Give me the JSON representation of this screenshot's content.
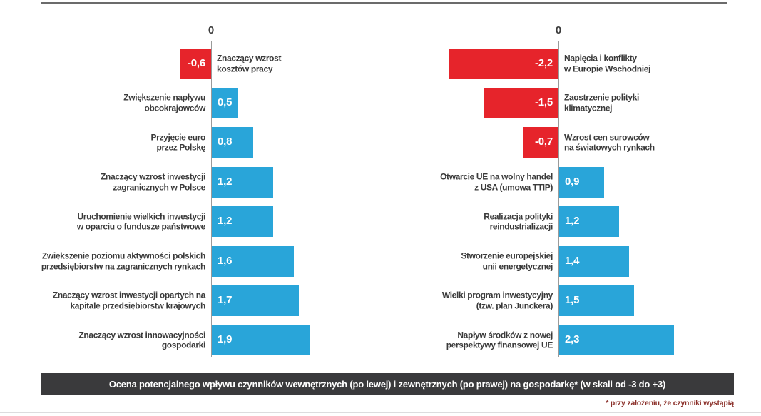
{
  "caption": "Ocena potencjalnego wpływu czynników wewnętrznych (po lewej) i zewnętrznych (po prawej) na gospodarkę* (w skali od -3 do +3)",
  "footnote": "* przy założeniu, że czynniki wystąpią",
  "colors": {
    "positive_bar": "#29a5d9",
    "negative_bar": "#e6242b",
    "axis": "#9a9a9a",
    "label_text": "#3a3a3a",
    "value_text": "#ffffff",
    "caption_bg": "#3a3a3c",
    "caption_text": "#ffffff",
    "footnote_text": "#8b302a",
    "top_rule": "#6b6b6b",
    "bottom_rule": "#dcdcde"
  },
  "chart_data": [
    {
      "type": "bar",
      "orientation": "horizontal",
      "side": "left",
      "subject": "czynniki wewnętrzne",
      "zero_label": "0",
      "xlim": [
        -3,
        3
      ],
      "grid": false,
      "legend": false,
      "categories": [
        "Znaczący wzrost\nkosztów pracy",
        "Zwiększenie napływu\nobcokrajowców",
        "Przyjęcie euro\nprzez Polskę",
        "Znaczący wzrost inwestycji\nzagranicznych w Polsce",
        "Uruchomienie wielkich inwestycji\nw oparciu o fundusze państwowe",
        "Zwiększenie poziomu aktywności polskich\nprzedsiębiorstw na zagranicznych rynkach",
        "Znaczący wzrost inwestycji opartych na\nkapitale przedsiębiorstw krajowych",
        "Znaczący wzrost innowacyjności\ngospodarki"
      ],
      "values": [
        -0.6,
        0.5,
        0.8,
        1.2,
        1.2,
        1.6,
        1.7,
        1.9
      ],
      "value_labels": [
        "-0,6",
        "0,5",
        "0,8",
        "1,2",
        "1,2",
        "1,6",
        "1,7",
        "1,9"
      ]
    },
    {
      "type": "bar",
      "orientation": "horizontal",
      "side": "right",
      "subject": "czynniki zewnętrzne",
      "zero_label": "0",
      "xlim": [
        -3,
        3
      ],
      "grid": false,
      "legend": false,
      "categories": [
        "Napięcia i konflikty\nw Europie Wschodniej",
        "Zaostrzenie polityki\nklimatycznej",
        "Wzrost cen surowców\nna światowych rynkach",
        "Otwarcie UE na wolny handel\nz USA (umowa TTIP)",
        "Realizacja polityki\nreindustrializacji",
        "Stworzenie europejskiej\nunii energetycznej",
        "Wielki program inwestycyjny\n(tzw. plan Junckera)",
        "Napływ środków z nowej\nperspektywy finansowej UE"
      ],
      "values": [
        -2.2,
        -1.5,
        -0.7,
        0.9,
        1.2,
        1.4,
        1.5,
        2.3
      ],
      "value_labels": [
        "-2,2",
        "-1,5",
        "-0,7",
        "0,9",
        "1,2",
        "1,4",
        "1,5",
        "2,3"
      ]
    }
  ]
}
